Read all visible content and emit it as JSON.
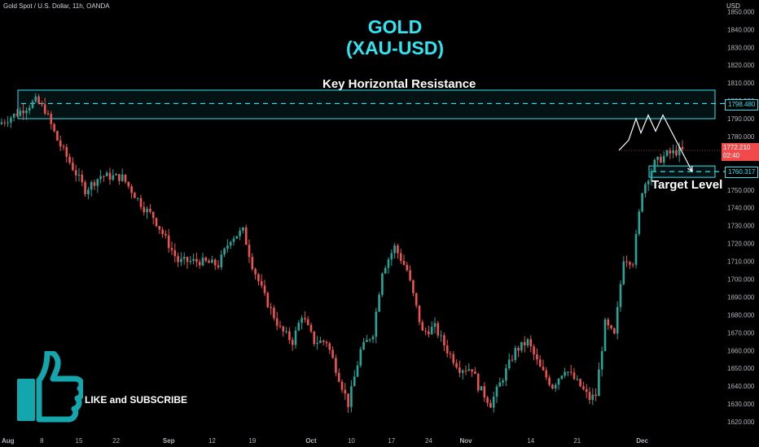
{
  "header": {
    "symbol_line": "Gold Spot / U.S. Dollar, 11h, OANDA",
    "currency": "USD"
  },
  "title": {
    "line1": "GOLD",
    "line2": "(XAU-USD)"
  },
  "annotations": {
    "resistance_label": "Key Horizontal Resistance",
    "target_label": "Target Level",
    "promo": "LIKE and SUBSCRIBE"
  },
  "price_badges": {
    "resistance": "1798.480",
    "target": "1760.317",
    "last_price": "1772.210",
    "countdown": "02:40"
  },
  "colors": {
    "up": "#26a69a",
    "down": "#ef5350",
    "accent": "#2ee6f3",
    "background": "#000000",
    "last_price_badge": "#f04a4a"
  },
  "icons": {
    "promo_icon": "thumbs-up-icon"
  },
  "chart_data": {
    "type": "candlestick",
    "title": "GOLD (XAU-USD)",
    "source": "Gold Spot / U.S. Dollar, 11h, OANDA",
    "ylabel": "USD",
    "ylim": [
      1615,
      1852
    ],
    "y_ticks": [
      1850,
      1840,
      1830,
      1820,
      1810,
      1800,
      1790,
      1780,
      1770,
      1760,
      1750,
      1740,
      1730,
      1720,
      1710,
      1700,
      1690,
      1680,
      1670,
      1660,
      1650,
      1640,
      1630,
      1620
    ],
    "x_ticks": [
      "Aug",
      "8",
      "15",
      "22",
      "Sep",
      "12",
      "19",
      "Oct",
      "10",
      "17",
      "24",
      "Nov",
      "14",
      "21",
      "Dec"
    ],
    "resistance_zone": [
      1790,
      1806
    ],
    "resistance_level": 1798.48,
    "target_level": 1760.317,
    "last_price": 1772.21,
    "price_path": [
      [
        0,
        1787
      ],
      [
        6,
        1793
      ],
      [
        12,
        1800
      ],
      [
        15,
        1795
      ],
      [
        19,
        1778
      ],
      [
        28,
        1750
      ],
      [
        33,
        1758
      ],
      [
        40,
        1757
      ],
      [
        47,
        1740
      ],
      [
        50,
        1735
      ],
      [
        58,
        1710
      ],
      [
        65,
        1710
      ],
      [
        71,
        1708
      ],
      [
        75,
        1723
      ],
      [
        79,
        1727
      ],
      [
        82,
        1708
      ],
      [
        86,
        1690
      ],
      [
        91,
        1672
      ],
      [
        95,
        1665
      ],
      [
        98,
        1680
      ],
      [
        102,
        1665
      ],
      [
        106,
        1665
      ],
      [
        110,
        1645
      ],
      [
        113,
        1630
      ],
      [
        117,
        1660
      ],
      [
        121,
        1670
      ],
      [
        124,
        1705
      ],
      [
        128,
        1718
      ],
      [
        132,
        1705
      ],
      [
        137,
        1670
      ],
      [
        141,
        1673
      ],
      [
        145,
        1660
      ],
      [
        149,
        1650
      ],
      [
        153,
        1650
      ],
      [
        155,
        1640
      ],
      [
        159,
        1630
      ],
      [
        163,
        1645
      ],
      [
        167,
        1660
      ],
      [
        171,
        1665
      ],
      [
        175,
        1650
      ],
      [
        179,
        1640
      ],
      [
        183,
        1650
      ],
      [
        188,
        1640
      ],
      [
        191,
        1633
      ],
      [
        193,
        1635
      ],
      [
        196,
        1675
      ],
      [
        199,
        1668
      ],
      [
        202,
        1712
      ],
      [
        205,
        1710
      ],
      [
        208,
        1750
      ],
      [
        212,
        1765
      ],
      [
        216,
        1770
      ],
      [
        220,
        1772
      ]
    ],
    "projection": [
      [
        220,
        1772.21
      ],
      [
        224,
        1778
      ],
      [
        227,
        1790
      ],
      [
        229,
        1782
      ],
      [
        232,
        1792
      ],
      [
        235,
        1783
      ],
      [
        238,
        1792
      ],
      [
        250,
        1760.317
      ]
    ]
  }
}
